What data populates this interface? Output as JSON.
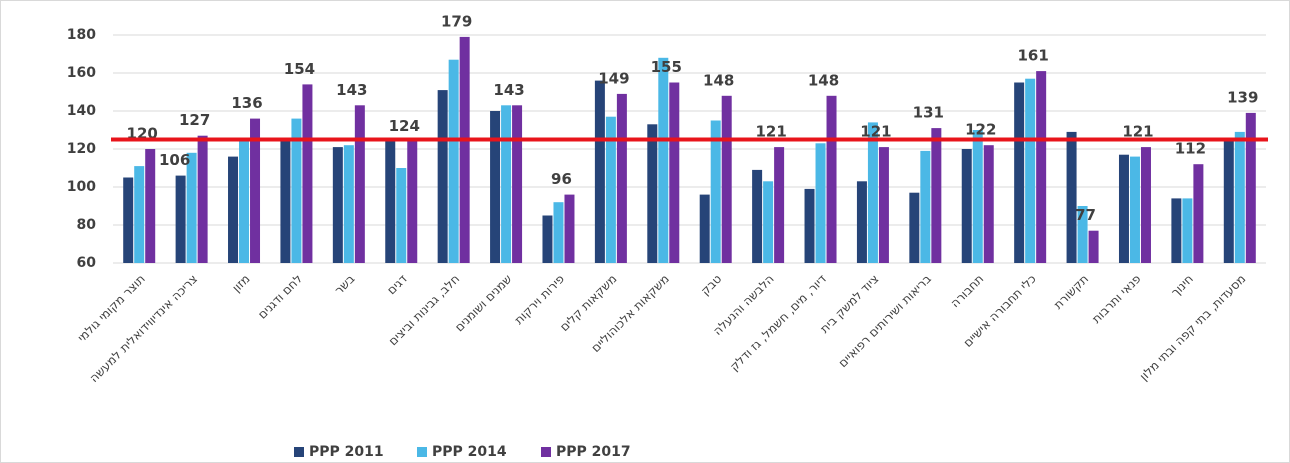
{
  "chart_data": {
    "type": "bar",
    "categories": [
      "תוצר מקומי גולמי",
      "צריכה אינדיווידואלית למעשה",
      "מזון",
      "לחם ודגנים",
      "בשר",
      "דגים",
      "חלב, גבינות וביצים",
      "שמנים ושומנים",
      "פירות וירקות",
      "משקאות קלים",
      "משקאות אלכוהוליים",
      "טבק",
      "הלבשה והנעלה",
      "דיור, מים, חשמל, גז ודלק",
      "ציוד למשק בית",
      "בריאות ושירותים רפואיים",
      "תחבורה",
      "כלי תחבורה אישיים",
      "תקשורת",
      "פנאי ותרבות",
      "חינוך",
      "מסעדות, בתי קפה ובתי מלון"
    ],
    "series": [
      {
        "name": "PPP 2011",
        "color": "#264478",
        "values": [
          105,
          106,
          116,
          126,
          121,
          125,
          151,
          140,
          85,
          156,
          133,
          96,
          109,
          99,
          103,
          97,
          120,
          155,
          129,
          117,
          94,
          126
        ],
        "value_labels": [
          null,
          "106",
          null,
          null,
          null,
          null,
          null,
          null,
          null,
          null,
          null,
          null,
          null,
          null,
          null,
          null,
          null,
          null,
          null,
          null,
          null,
          null
        ]
      },
      {
        "name": "PPP 2014",
        "color": "#4bb8e6",
        "values": [
          111,
          118,
          124,
          136,
          122,
          110,
          167,
          143,
          92,
          137,
          168,
          135,
          103,
          123,
          134,
          119,
          130,
          157,
          90,
          116,
          94,
          129
        ]
      },
      {
        "name": "PPP 2017",
        "color": "#7030a0",
        "values": [
          120,
          127,
          136,
          154,
          143,
          124,
          179,
          143,
          96,
          149,
          155,
          148,
          121,
          148,
          121,
          131,
          122,
          161,
          77,
          121,
          112,
          139
        ],
        "value_labels": [
          "120",
          "127",
          "136",
          "154",
          "143",
          "124",
          "179",
          "143",
          "96",
          "149",
          "155",
          "148",
          "121",
          "148",
          "121",
          "131",
          "122",
          "161",
          "77",
          "121",
          "112",
          "139"
        ]
      }
    ],
    "ylim": [
      60,
      180
    ],
    "yticks": [
      60,
      80,
      100,
      120,
      140,
      160,
      180
    ],
    "grid": true,
    "reference_line": {
      "value": 125,
      "color": "#e8141b"
    },
    "legend": "bottom"
  }
}
